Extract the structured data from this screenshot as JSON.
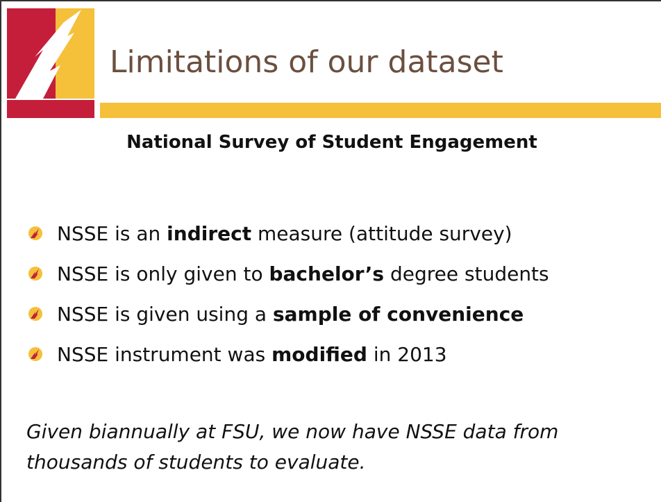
{
  "header": {
    "title": "Limitations of our dataset"
  },
  "subtitle": "National Survey of Student Engagement",
  "bullets": [
    [
      {
        "text": "NSSE is an "
      },
      {
        "text": "indirect",
        "bold": true
      },
      {
        "text": " measure (attitude survey)"
      }
    ],
    [
      {
        "text": "NSSE is only given to "
      },
      {
        "text": "bachelor’s",
        "bold": true
      },
      {
        "text": " degree students"
      }
    ],
    [
      {
        "text": "NSSE is given using a "
      },
      {
        "text": "sample of convenience",
        "bold": true
      }
    ],
    [
      {
        "text": "NSSE instrument was "
      },
      {
        "text": "modified",
        "bold": true
      },
      {
        "text": " in 2013"
      }
    ]
  ],
  "note": "Given biannually at FSU, we now have NSSE data from thousands of students to evaluate."
}
